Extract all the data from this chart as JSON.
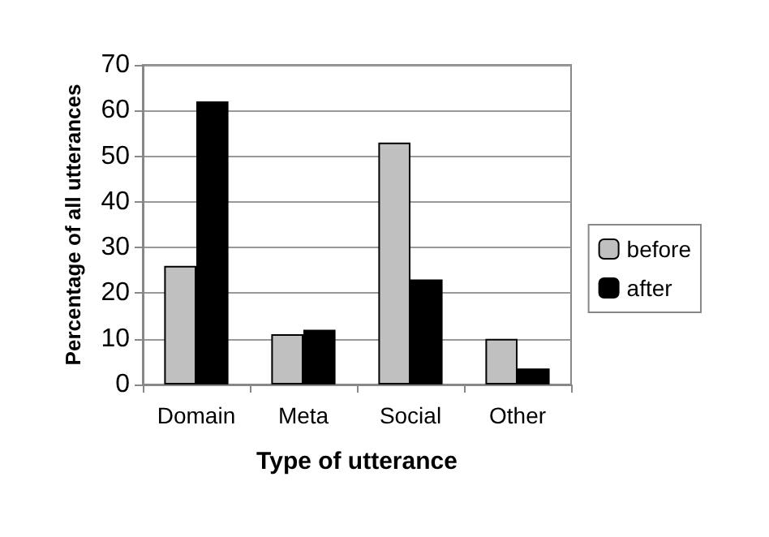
{
  "chart_data": {
    "type": "bar",
    "xlabel": "Type of utterance",
    "ylabel": "Percentage of all utterances",
    "categories": [
      "Domain",
      "Meta",
      "Social",
      "Other"
    ],
    "series": [
      {
        "name": "before",
        "color": "#c0c0c0",
        "values": [
          26,
          11,
          53,
          10
        ]
      },
      {
        "name": "after",
        "color": "#000000",
        "values": [
          62,
          12,
          23,
          3.5
        ]
      }
    ],
    "ylim": [
      0,
      70
    ],
    "yticks": [
      0,
      10,
      20,
      30,
      40,
      50,
      60,
      70
    ],
    "grid": "y",
    "legend": "right"
  }
}
